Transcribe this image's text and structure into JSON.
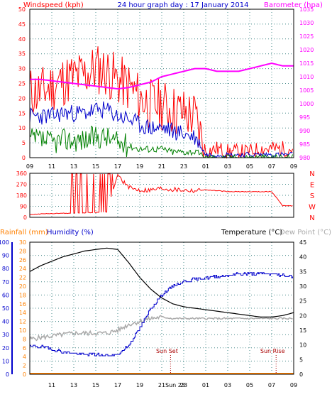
{
  "header": {
    "left_label": "Windspeed (kph)",
    "title": "24 hour graph day : 17 January 2014",
    "right_label": "Barometer (hpa)"
  },
  "colors": {
    "bg": "#ffffff",
    "grid": "#4a8c8c",
    "wind_avg": "#008000",
    "wind_gust": "#ff0000",
    "wind_mid": "#0000cc",
    "barometer": "#ff00ff",
    "wind_dir": "#ff0000",
    "rainfall": "#ff8000",
    "humidity": "#0000cc",
    "temperature": "#000000",
    "dew_point": "#aaaaaa",
    "left_axis_text": "#ff0000",
    "right_axis_text": "#ff00ff",
    "rain_axis_text": "#ff8000",
    "hum_axis_text": "#0000cc"
  },
  "x_axis": {
    "labels": [
      "09",
      "11",
      "13",
      "15",
      "17",
      "19",
      "21",
      "23",
      "01",
      "03",
      "05",
      "07",
      "09"
    ],
    "bottom_labels": [
      "11",
      "13",
      "15",
      "17",
      "19",
      "21",
      "Sun 23",
      "23",
      "01",
      "03",
      "05",
      "07",
      "09"
    ]
  },
  "chart_data": [
    {
      "type": "line",
      "name": "wind_and_pressure",
      "title": "24 hour graph day : 17 January 2014",
      "ylabel": "Windspeed (kph)",
      "ylim": [
        0,
        50
      ],
      "yticks": [
        0,
        5,
        10,
        15,
        20,
        25,
        30,
        35,
        40,
        45,
        50
      ],
      "y2label": "Barometer (hpa)",
      "y2lim": [
        980,
        1035
      ],
      "y2ticks": [
        980,
        985,
        990,
        995,
        1000,
        1005,
        1010,
        1015,
        1020,
        1025,
        1030,
        1035
      ],
      "x_hours": [
        9,
        10,
        11,
        12,
        13,
        14,
        15,
        16,
        17,
        18,
        19,
        20,
        21,
        22,
        23,
        24,
        25,
        26,
        27,
        28,
        29,
        30,
        31,
        32,
        33
      ],
      "series": [
        {
          "name": "gust",
          "values": [
            22,
            22,
            24,
            26,
            27,
            28,
            30,
            29,
            26,
            24,
            20,
            18,
            18,
            16,
            15,
            14,
            2,
            3,
            2,
            2,
            2,
            3,
            3,
            3,
            3
          ]
        },
        {
          "name": "average",
          "values": [
            14,
            14,
            14,
            15,
            15,
            15,
            16,
            16,
            14,
            13,
            11,
            10,
            10,
            9,
            8,
            7,
            1,
            1,
            1,
            1,
            1,
            1,
            1,
            1,
            1
          ]
        },
        {
          "name": "low",
          "values": [
            6,
            6,
            5,
            6,
            6,
            6,
            7,
            7,
            5,
            4,
            3,
            3,
            3,
            2,
            2,
            2,
            0,
            0,
            0,
            0,
            0,
            0,
            0,
            0,
            0
          ]
        },
        {
          "name": "barometer",
          "values": [
            1009,
            1009,
            1008.5,
            1008,
            1007.5,
            1007,
            1006.5,
            1006,
            1005.5,
            1006,
            1007,
            1008,
            1010,
            1011,
            1012,
            1013,
            1013,
            1012,
            1012,
            1012,
            1013,
            1014,
            1015,
            1014,
            1014
          ]
        }
      ]
    },
    {
      "type": "line",
      "name": "wind_direction",
      "ylim": [
        0,
        360
      ],
      "yticks": [
        0,
        90,
        180,
        270,
        360
      ],
      "compass_labels": [
        "N",
        "W",
        "S",
        "E",
        "N"
      ],
      "x_hours": [
        9,
        11,
        13,
        15,
        16,
        17,
        18,
        19,
        20,
        21,
        22,
        23,
        24,
        25,
        27,
        29,
        31,
        32,
        33
      ],
      "values": [
        25,
        30,
        35,
        40,
        45,
        350,
        240,
        225,
        225,
        240,
        230,
        225,
        220,
        225,
        210,
        210,
        210,
        95,
        95
      ]
    },
    {
      "type": "line",
      "name": "temp_humidity_rain",
      "ylabel_left_rain": "Rainfall (mm)",
      "ylabel_left_humidity": "Humidity (%)",
      "ylabel_right_temp": "Temperature (°C)",
      "ylabel_right_dew": "Dew Point (°C)",
      "humidity_ylim": [
        0,
        100
      ],
      "humidity_ticks": [
        0,
        10,
        20,
        30,
        40,
        50,
        60,
        70,
        80,
        90,
        100
      ],
      "rain_ylim": [
        0,
        30
      ],
      "rain_ticks": [
        0,
        2,
        4,
        6,
        8,
        10,
        12,
        14,
        16,
        18,
        20,
        22,
        24,
        26,
        28,
        30
      ],
      "temp_ylim": [
        0,
        45
      ],
      "temp_ticks": [
        0,
        5,
        10,
        15,
        20,
        25,
        30,
        35,
        40,
        45
      ],
      "x_hours": [
        9,
        10,
        11,
        12,
        13,
        14,
        15,
        16,
        17,
        18,
        19,
        20,
        21,
        22,
        23,
        24,
        25,
        26,
        27,
        28,
        29,
        30,
        31,
        32,
        33
      ],
      "series": [
        {
          "name": "temperature",
          "values": [
            35,
            37,
            38.5,
            40,
            41,
            42,
            42.5,
            43,
            42.5,
            38,
            33,
            29,
            26,
            24,
            23,
            22.5,
            22,
            21.5,
            21,
            20.5,
            20,
            19.5,
            19.5,
            20,
            21
          ]
        },
        {
          "name": "humidity",
          "values": [
            21,
            21,
            19,
            17,
            16,
            15,
            15,
            14,
            15,
            22,
            35,
            50,
            60,
            67,
            70,
            72,
            73,
            74,
            75,
            76,
            76,
            76,
            76,
            75,
            74
          ]
        },
        {
          "name": "dew_point",
          "values": [
            12,
            12.5,
            13,
            13.5,
            14,
            14,
            14,
            14,
            15,
            17,
            18,
            19,
            19.5,
            19,
            19,
            19,
            19,
            19,
            19,
            19,
            19,
            19,
            19,
            19,
            19
          ]
        },
        {
          "name": "rainfall",
          "values": [
            0,
            0,
            0,
            0,
            0,
            0,
            0,
            0,
            0,
            0,
            0,
            0,
            0,
            0,
            0,
            0,
            0,
            0,
            0,
            0,
            0,
            0,
            0,
            0,
            0
          ]
        }
      ],
      "annotations": [
        {
          "text": "Sun Set",
          "x_hour": 21.8
        },
        {
          "text": "Sun Rise",
          "x_hour": 31.4
        }
      ]
    }
  ]
}
